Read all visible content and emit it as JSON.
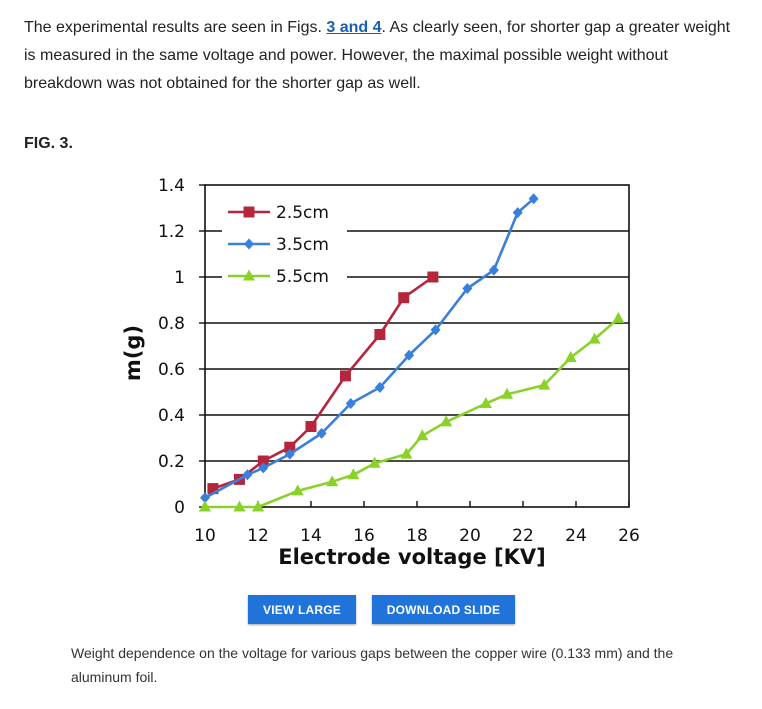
{
  "paragraph": {
    "before": "The experimental results are seen in Figs. ",
    "link": "3 and 4",
    "after": ". As clearly seen, for shorter gap a greater weight is measured in the same voltage and power. However, the maximal possible weight without breakdown was not obtained for the shorter gap as well."
  },
  "figure": {
    "label": "FIG. 3.",
    "view_large": "VIEW LARGE",
    "download_slide": "DOWNLOAD SLIDE",
    "caption": "Weight dependence on the voltage for various gaps between the copper wire (0.133 mm) and the aluminum foil."
  },
  "chart_data": {
    "type": "line",
    "title": "",
    "xlabel": "Electrode voltage [KV]",
    "ylabel": "m(g)",
    "xlim": [
      10,
      26
    ],
    "ylim": [
      0,
      1.4
    ],
    "xticks": [
      "10",
      "12",
      "14",
      "16",
      "18",
      "20",
      "22",
      "24",
      "26"
    ],
    "yticks": [
      "0",
      "0.2",
      "0.4",
      "0.6",
      "0.8",
      "1",
      "1.2",
      "1.4"
    ],
    "grid": "horizontal",
    "legend_position": "top-left",
    "series": [
      {
        "name": "2.5cm",
        "color": "#b5253c",
        "marker": "square",
        "x": [
          10.3,
          11.3,
          12.2,
          13.2,
          14.0,
          15.3,
          16.6,
          17.5,
          18.6
        ],
        "y": [
          0.08,
          0.12,
          0.2,
          0.26,
          0.35,
          0.57,
          0.75,
          0.91,
          1.0
        ]
      },
      {
        "name": "3.5cm",
        "color": "#3a7fd9",
        "marker": "diamond",
        "x": [
          10.0,
          11.6,
          12.2,
          13.2,
          14.4,
          15.5,
          16.6,
          17.7,
          18.7,
          19.9,
          20.9,
          21.8,
          22.4
        ],
        "y": [
          0.04,
          0.14,
          0.17,
          0.23,
          0.32,
          0.45,
          0.52,
          0.66,
          0.77,
          0.95,
          1.03,
          1.28,
          1.34
        ]
      },
      {
        "name": "5.5cm",
        "color": "#8ad22a",
        "marker": "triangle",
        "x": [
          10.0,
          11.3,
          12.0,
          13.5,
          14.8,
          15.6,
          16.4,
          17.6,
          18.2,
          19.1,
          20.6,
          21.4,
          22.8,
          23.8,
          24.7,
          25.6
        ],
        "y": [
          0.0,
          0.0,
          0.0,
          0.07,
          0.11,
          0.14,
          0.19,
          0.23,
          0.31,
          0.37,
          0.45,
          0.49,
          0.53,
          0.65,
          0.73,
          0.82
        ]
      }
    ]
  }
}
